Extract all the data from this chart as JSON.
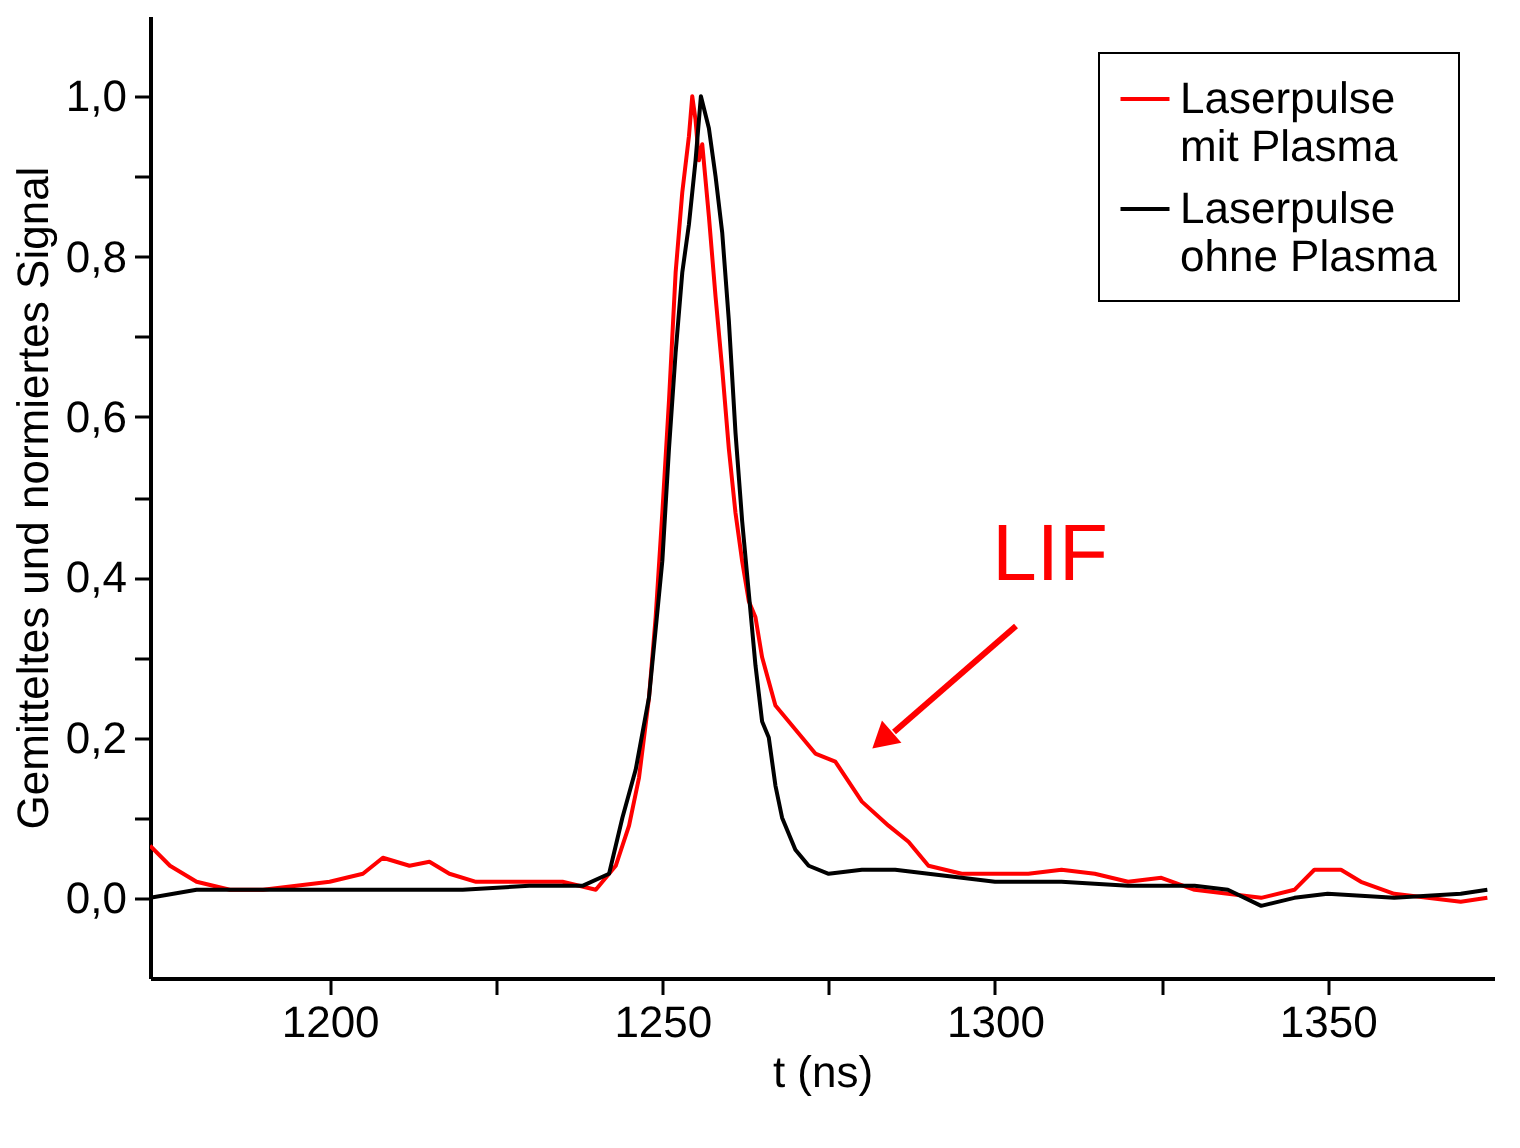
{
  "chart_data": {
    "type": "line",
    "xlabel": "t (ns)",
    "ylabel": "Gemitteltes und normiertes Signal",
    "xlim": [
      1173,
      1375
    ],
    "ylim": [
      -0.1,
      1.1
    ],
    "xticks": [
      1200,
      {
        "value": 1225,
        "label": null
      },
      1250,
      {
        "value": 1275,
        "label": null
      },
      1300,
      {
        "value": 1325,
        "label": null
      },
      1350
    ],
    "yticks": [
      {
        "value": 0,
        "label": "0,0"
      },
      {
        "value": 0.1,
        "label": null
      },
      {
        "value": 0.2,
        "label": "0,2"
      },
      {
        "value": 0.3,
        "label": null
      },
      {
        "value": 0.4,
        "label": "0,4"
      },
      {
        "value": 0.5,
        "label": null
      },
      {
        "value": 0.6,
        "label": "0,6"
      },
      {
        "value": 0.7,
        "label": null
      },
      {
        "value": 0.8,
        "label": "0,8"
      },
      {
        "value": 0.9,
        "label": null
      },
      {
        "value": 1.0,
        "label": "1,0"
      }
    ],
    "grid": false,
    "legend": "top right",
    "marker": "none",
    "line_style": "solid",
    "annotations": [
      "LIF"
    ],
    "series": [
      {
        "name": "Laserpulse mit Plasma",
        "color": "#ff0000",
        "x": [
          1173,
          1176,
          1180,
          1185,
          1190,
          1195,
          1200,
          1205,
          1208,
          1212,
          1215,
          1218,
          1222,
          1230,
          1235,
          1240,
          1243,
          1245,
          1246.5,
          1248,
          1249,
          1250,
          1251,
          1252,
          1253,
          1254,
          1254.5,
          1255,
          1255.5,
          1256,
          1257,
          1258,
          1259,
          1260,
          1261,
          1262,
          1263,
          1264,
          1265,
          1267,
          1270,
          1273,
          1276,
          1280,
          1284,
          1287,
          1290,
          1295,
          1300,
          1305,
          1310,
          1315,
          1320,
          1325,
          1330,
          1335,
          1340,
          1345,
          1348,
          1352,
          1355,
          1360,
          1365,
          1370,
          1374
        ],
        "values": [
          0.065,
          0.04,
          0.02,
          0.01,
          0.01,
          0.015,
          0.02,
          0.03,
          0.05,
          0.04,
          0.045,
          0.03,
          0.02,
          0.02,
          0.02,
          0.01,
          0.04,
          0.09,
          0.15,
          0.25,
          0.35,
          0.48,
          0.62,
          0.78,
          0.88,
          0.95,
          1.0,
          0.97,
          0.92,
          0.94,
          0.85,
          0.75,
          0.66,
          0.56,
          0.48,
          0.42,
          0.37,
          0.35,
          0.3,
          0.24,
          0.21,
          0.18,
          0.17,
          0.12,
          0.09,
          0.07,
          0.04,
          0.03,
          0.03,
          0.03,
          0.035,
          0.03,
          0.02,
          0.025,
          0.01,
          0.005,
          0.0,
          0.01,
          0.035,
          0.035,
          0.02,
          0.005,
          0.0,
          -0.005,
          0.0
        ]
      },
      {
        "name": "Laserpulse ohne Plasma",
        "color": "#000000",
        "x": [
          1173,
          1180,
          1190,
          1200,
          1210,
          1220,
          1230,
          1238,
          1242,
          1244,
          1246,
          1248,
          1250,
          1251,
          1252,
          1253,
          1254,
          1255,
          1255.8,
          1257,
          1258,
          1259,
          1260,
          1261,
          1262,
          1263,
          1264,
          1265,
          1266,
          1267,
          1268,
          1270,
          1272,
          1275,
          1280,
          1285,
          1290,
          1295,
          1300,
          1310,
          1320,
          1330,
          1335,
          1340,
          1345,
          1350,
          1360,
          1370,
          1374
        ],
        "values": [
          0.0,
          0.01,
          0.01,
          0.01,
          0.01,
          0.01,
          0.015,
          0.015,
          0.03,
          0.1,
          0.16,
          0.25,
          0.42,
          0.56,
          0.68,
          0.78,
          0.84,
          0.92,
          1.0,
          0.96,
          0.9,
          0.83,
          0.72,
          0.58,
          0.47,
          0.38,
          0.29,
          0.22,
          0.2,
          0.14,
          0.1,
          0.06,
          0.04,
          0.03,
          0.035,
          0.035,
          0.03,
          0.025,
          0.02,
          0.02,
          0.015,
          0.015,
          0.01,
          -0.01,
          0.0,
          0.005,
          0.0,
          0.005,
          0.01
        ]
      }
    ]
  }
}
